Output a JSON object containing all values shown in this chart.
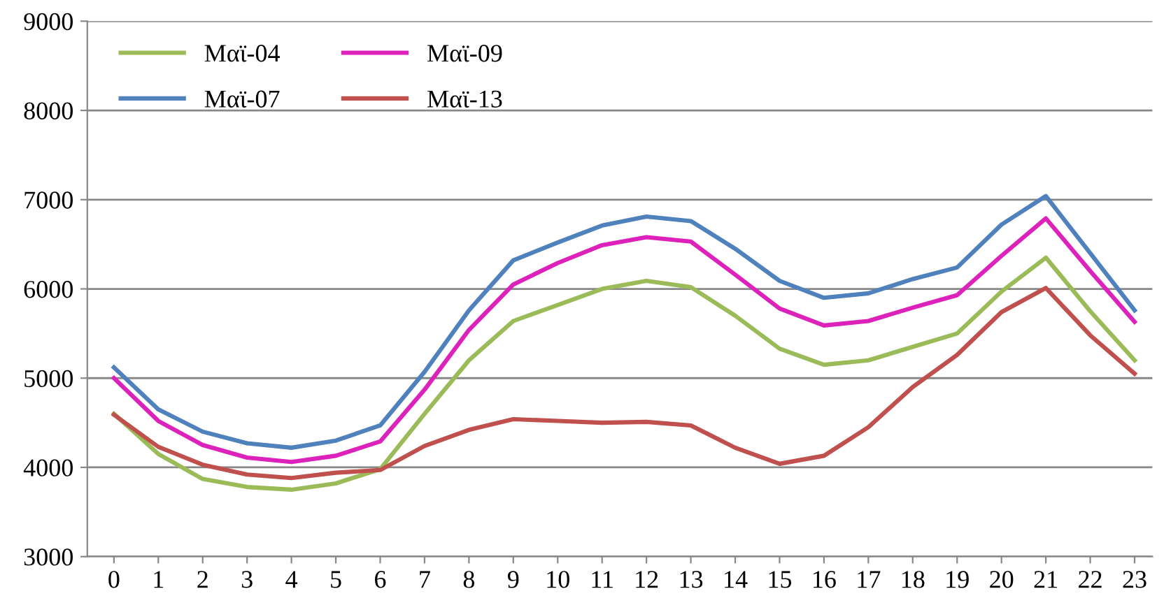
{
  "chart_data": {
    "type": "line",
    "categories": [
      "0",
      "1",
      "2",
      "3",
      "4",
      "5",
      "6",
      "7",
      "8",
      "9",
      "10",
      "11",
      "12",
      "13",
      "14",
      "15",
      "16",
      "17",
      "18",
      "19",
      "20",
      "21",
      "22",
      "23"
    ],
    "series": [
      {
        "name": "Μαϊ-04",
        "color": "#9bbb59",
        "values": [
          4600,
          4150,
          3870,
          3780,
          3750,
          3820,
          3980,
          4600,
          5200,
          5640,
          5820,
          6000,
          6090,
          6020,
          5700,
          5330,
          5150,
          5200,
          5350,
          5500,
          5970,
          6350,
          5750,
          5200
        ]
      },
      {
        "name": "Μαϊ-07",
        "color": "#4f81bd",
        "values": [
          5120,
          4650,
          4400,
          4270,
          4220,
          4300,
          4470,
          5070,
          5760,
          6320,
          6520,
          6710,
          6810,
          6760,
          6450,
          6090,
          5900,
          5950,
          6110,
          6240,
          6720,
          7040,
          6400,
          5760
        ]
      },
      {
        "name": "Μαϊ-09",
        "color": "#dd22bb",
        "values": [
          5000,
          4520,
          4250,
          4110,
          4060,
          4130,
          4290,
          4870,
          5540,
          6050,
          6290,
          6490,
          6580,
          6530,
          6160,
          5780,
          5590,
          5640,
          5790,
          5930,
          6370,
          6790,
          6200,
          5630
        ]
      },
      {
        "name": "Μαϊ-13",
        "color": "#c0504d",
        "values": [
          4590,
          4230,
          4030,
          3920,
          3880,
          3940,
          3970,
          4240,
          4420,
          4540,
          4520,
          4500,
          4510,
          4470,
          4220,
          4040,
          4130,
          4450,
          4900,
          5260,
          5740,
          6010,
          5480,
          5050
        ]
      }
    ],
    "ylim": [
      3000,
      9000
    ],
    "yticks": [
      3000,
      4000,
      5000,
      6000,
      7000,
      8000,
      9000
    ],
    "grid": "y",
    "legend": "top left",
    "marker": "none",
    "line_style": "solid"
  }
}
